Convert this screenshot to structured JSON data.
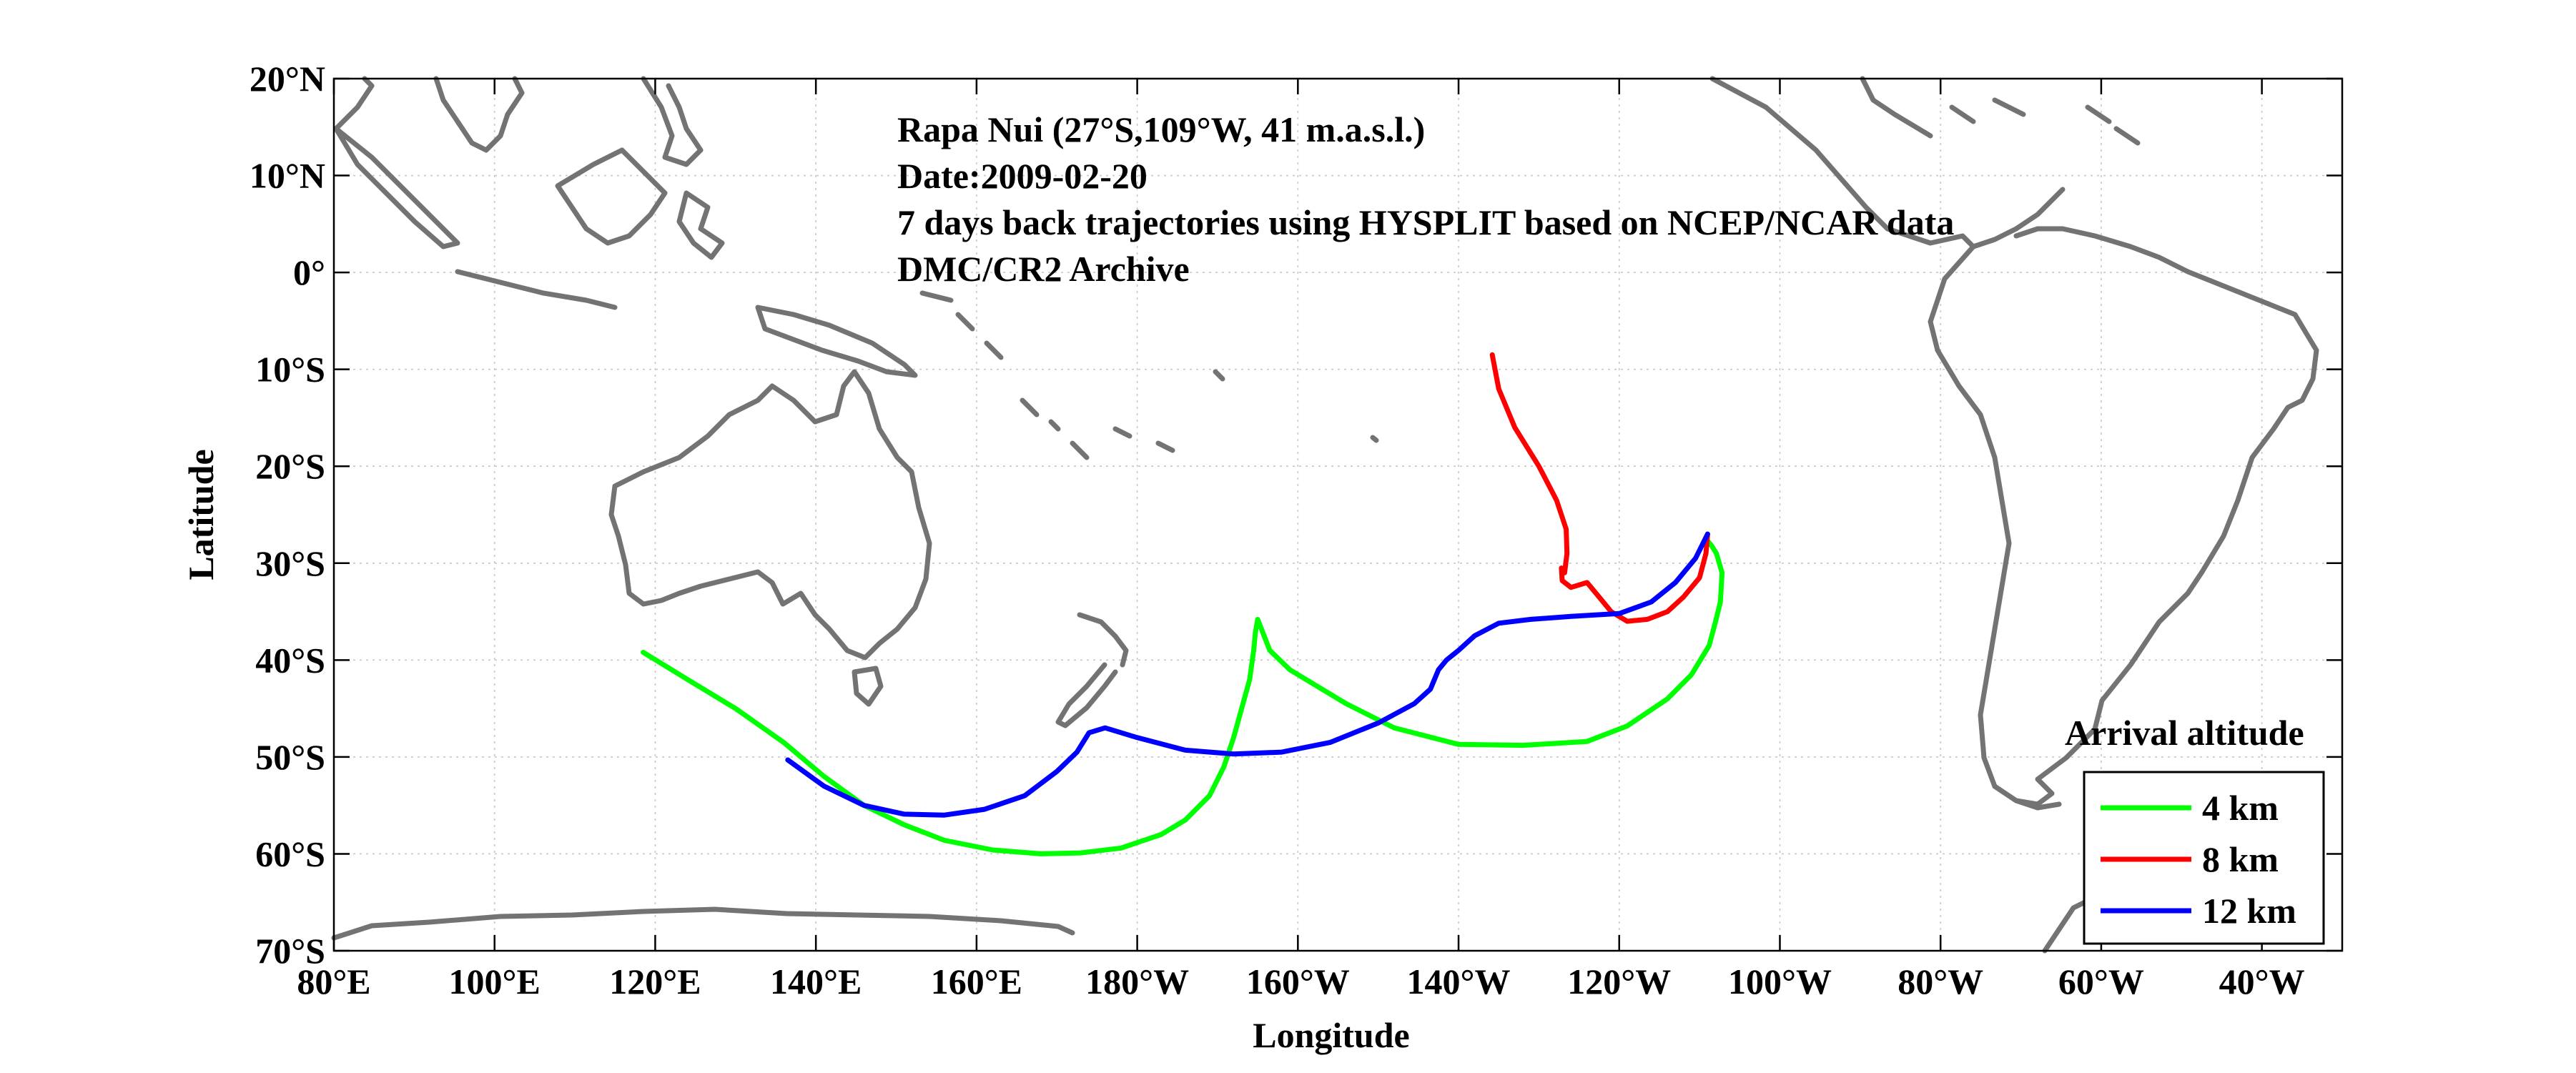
{
  "chart_data": {
    "type": "line",
    "title": "",
    "xlabel": "Longitude",
    "ylabel": "Latitude",
    "xlim": [
      80,
      330
    ],
    "ylim": [
      -70,
      20
    ],
    "x_ticks": [
      80,
      100,
      120,
      140,
      160,
      180,
      200,
      220,
      240,
      260,
      280,
      300,
      320
    ],
    "x_tick_labels": [
      "80°E",
      "100°E",
      "120°E",
      "140°E",
      "160°E",
      "180°W",
      "160°W",
      "140°W",
      "120°W",
      "100°W",
      "80°W",
      "60°W",
      "40°W"
    ],
    "y_ticks": [
      20,
      10,
      0,
      -10,
      -20,
      -30,
      -40,
      -50,
      -60,
      -70
    ],
    "y_tick_labels": [
      "20°N",
      "10°N",
      "0°",
      "10°S",
      "20°S",
      "30°S",
      "40°S",
      "50°S",
      "60°S",
      "70°S"
    ],
    "grid": true,
    "annotations": [
      "Rapa Nui (27°S,109°W, 41 m.a.s.l.)",
      "Date:2009-02-20",
      "7 days back trajectories using HYSPLIT based on NCEP/NCAR data",
      "DMC/CR2 Archive"
    ],
    "legend_title": "Arrival altitude",
    "legend_position": "bottom-right",
    "coastline_color": "#737373",
    "series": [
      {
        "name": "4 km",
        "color": "#00ff00",
        "x": [
          118.5,
          124,
          130,
          136,
          141,
          146,
          151,
          156,
          162,
          168,
          173,
          178,
          183,
          186,
          189,
          190.8,
          192,
          193,
          194,
          194.5,
          194.7,
          195,
          196.5,
          199,
          202,
          206,
          212,
          220,
          228,
          236,
          241,
          246,
          249,
          251.2,
          252,
          252.6,
          252.8,
          252.1,
          251.5,
          250.8,
          251
        ],
        "y": [
          -39.2,
          -42,
          -45,
          -48.5,
          -52,
          -55,
          -57,
          -58.6,
          -59.6,
          -60,
          -59.9,
          -59.4,
          -58,
          -56.5,
          -54,
          -51,
          -48,
          -45,
          -42,
          -39,
          -37.2,
          -35.8,
          -39,
          -41,
          -42.5,
          -44.5,
          -47,
          -48.7,
          -48.8,
          -48.4,
          -46.8,
          -44,
          -41.5,
          -38.5,
          -36,
          -34,
          -31,
          -29,
          -28.2,
          -27.5,
          -27
        ]
      },
      {
        "name": "8 km",
        "color": "#ff0000",
        "x": [
          224.2,
          225,
          227,
          230,
          232.2,
          233.4,
          233.5,
          233.2,
          232.8,
          232.9,
          234,
          236,
          237.5,
          239,
          241,
          243.5,
          246,
          248,
          250,
          250.8,
          251
        ],
        "y": [
          -8.5,
          -12,
          -16,
          -20,
          -23.5,
          -26.5,
          -29,
          -31,
          -30.5,
          -31.8,
          -32.5,
          -32,
          -33.5,
          -35,
          -36,
          -35.8,
          -35,
          -33.5,
          -31.5,
          -29,
          -27
        ]
      },
      {
        "name": "12 km",
        "color": "#0000ff",
        "x": [
          136.5,
          141,
          146,
          151,
          156,
          161,
          166,
          170,
          172.5,
          174,
          176,
          180,
          186,
          192,
          198,
          204,
          210,
          214.5,
          216.5,
          217.5,
          218.5,
          220,
          222,
          225,
          229,
          234,
          240,
          244,
          247,
          249.5,
          251
        ],
        "y": [
          -50.3,
          -53,
          -55,
          -55.9,
          -56,
          -55.4,
          -54,
          -51.5,
          -49.5,
          -47.5,
          -47,
          -48,
          -49.3,
          -49.7,
          -49.5,
          -48.5,
          -46.5,
          -44.5,
          -43,
          -41,
          -40,
          -39,
          -37.5,
          -36.2,
          -35.8,
          -35.5,
          -35.2,
          -34,
          -32,
          -29.5,
          -27
        ]
      }
    ]
  }
}
